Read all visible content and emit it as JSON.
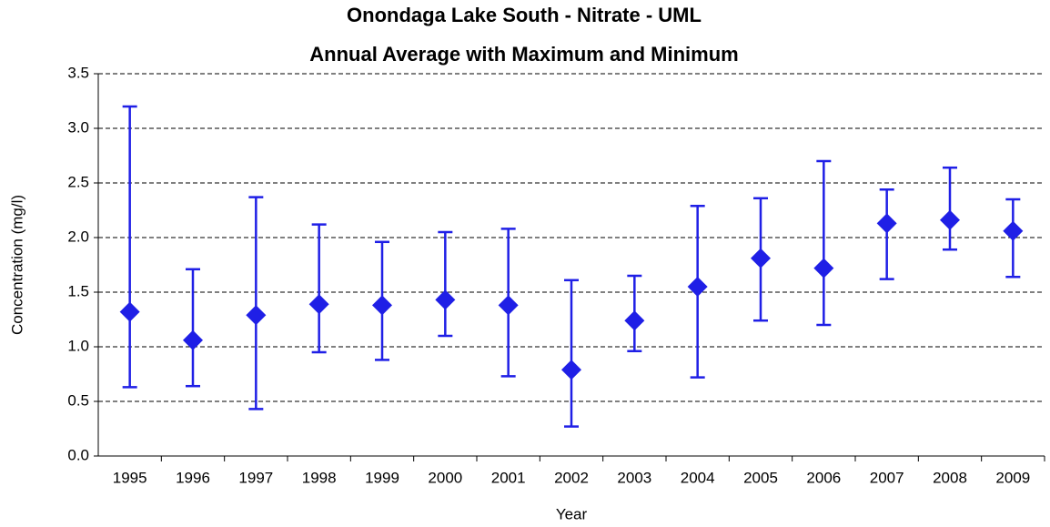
{
  "chart_data": {
    "type": "errorbar",
    "title": "Onondaga Lake South - Nitrate - UML",
    "subtitle": "Annual Average with Maximum and Minimum",
    "x_label": "Year",
    "y_label": "Concentration (mg/l)",
    "categories": [
      "1995",
      "1996",
      "1997",
      "1998",
      "1999",
      "2000",
      "2001",
      "2002",
      "2003",
      "2004",
      "2005",
      "2006",
      "2007",
      "2008",
      "2009"
    ],
    "series": [
      {
        "color": "#1f1fe6",
        "values": [
          1.32,
          1.06,
          1.29,
          1.39,
          1.38,
          1.43,
          1.38,
          0.79,
          1.24,
          1.55,
          1.81,
          1.72,
          2.13,
          2.16,
          2.06
        ],
        "max": [
          3.2,
          1.71,
          2.37,
          2.12,
          1.96,
          2.05,
          2.08,
          1.61,
          1.65,
          2.29,
          2.36,
          2.7,
          2.44,
          2.64,
          2.35
        ],
        "min": [
          0.63,
          0.64,
          0.43,
          0.95,
          0.88,
          1.1,
          0.73,
          0.27,
          0.96,
          0.72,
          1.24,
          1.2,
          1.62,
          1.89,
          1.64
        ]
      }
    ],
    "ylim": [
      0,
      3.5
    ],
    "yticks": [
      {
        "value": 0,
        "label": "0.0"
      },
      0.5,
      {
        "value": 1,
        "label": "1.0"
      },
      1.5,
      {
        "value": 2,
        "label": "2.0"
      },
      2.5,
      {
        "value": 3,
        "label": "3.0"
      },
      3.5
    ],
    "grid": true
  }
}
